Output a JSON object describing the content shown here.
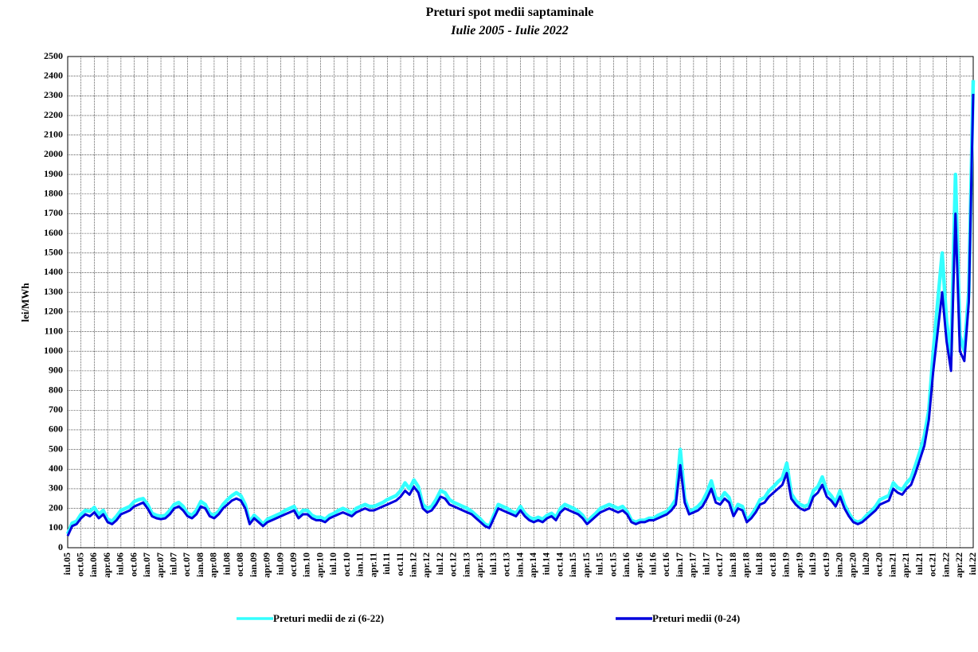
{
  "chart_data": {
    "type": "line",
    "title": "Preturi spot medii saptaminale",
    "subtitle": "Iulie 2005 - Iulie 2022",
    "y_label": "lei/MWh",
    "ylim": [
      0,
      2500
    ],
    "yticks": [
      0,
      100,
      200,
      300,
      400,
      500,
      600,
      700,
      800,
      900,
      1000,
      1100,
      1200,
      1300,
      1400,
      1500,
      1600,
      1700,
      1800,
      1900,
      2000,
      2100,
      2200,
      2300,
      2400,
      2500
    ],
    "grid": true,
    "legend": "bottom",
    "categories": [
      "iul.05",
      null,
      null,
      "oct.05",
      null,
      null,
      "ian.06",
      null,
      null,
      "apr.06",
      null,
      null,
      "iul.06",
      null,
      null,
      "oct.06",
      null,
      null,
      "ian.07",
      null,
      null,
      "apr.07",
      null,
      null,
      "iul.07",
      null,
      null,
      "oct.07",
      null,
      null,
      "ian.08",
      null,
      null,
      "apr.08",
      null,
      null,
      "iul.08",
      null,
      null,
      "oct.08",
      null,
      null,
      "ian.09",
      null,
      null,
      "apr.09",
      null,
      null,
      "iul.09",
      null,
      null,
      "oct.09",
      null,
      null,
      "ian.10",
      null,
      null,
      "apr.10",
      null,
      null,
      "iul.10",
      null,
      null,
      "oct.10",
      null,
      null,
      "ian.11",
      null,
      null,
      "apr.11",
      null,
      null,
      "iul.11",
      null,
      null,
      "oct.11",
      null,
      null,
      "ian.12",
      null,
      null,
      "apr.12",
      null,
      null,
      "iul.12",
      null,
      null,
      "oct.12",
      null,
      null,
      "ian.13",
      null,
      null,
      "apr.13",
      null,
      null,
      "iul.13",
      null,
      null,
      "oct.13",
      null,
      null,
      "ian.14",
      null,
      null,
      "apr.14",
      null,
      null,
      "iul.14",
      null,
      null,
      "oct.14",
      null,
      null,
      "ian.15",
      null,
      null,
      "apr.15",
      null,
      null,
      "iul.15",
      null,
      null,
      "oct.15",
      null,
      null,
      "ian.16",
      null,
      null,
      "apr.16",
      null,
      null,
      "iul.16",
      null,
      null,
      "oct.16",
      null,
      null,
      "ian.17",
      null,
      null,
      "apr.17",
      null,
      null,
      "iul.17",
      null,
      null,
      "oct.17",
      null,
      null,
      "ian.18",
      null,
      null,
      "apr.18",
      null,
      null,
      "iul.18",
      null,
      null,
      "oct.18",
      null,
      null,
      "ian.19",
      null,
      null,
      "apr.19",
      null,
      null,
      "iul.19",
      null,
      null,
      "oct.19",
      null,
      null,
      "ian.20",
      null,
      null,
      "apr.20",
      null,
      null,
      "iul.20",
      null,
      null,
      "oct.20",
      null,
      null,
      "ian.21",
      null,
      null,
      "apr.21",
      null,
      null,
      "iul.21",
      null,
      null,
      "oct.21",
      null,
      null,
      "ian.22",
      null,
      null,
      "apr.22",
      null,
      null,
      "iul.22"
    ],
    "series": [
      {
        "name": "Preturi medii de zi (6-22)",
        "color": "#33ffff",
        "values": [
          70,
          125,
          135,
          170,
          190,
          185,
          205,
          170,
          190,
          145,
          135,
          160,
          190,
          200,
          210,
          235,
          245,
          250,
          220,
          175,
          165,
          160,
          165,
          190,
          220,
          230,
          210,
          175,
          165,
          190,
          235,
          220,
          175,
          165,
          185,
          220,
          245,
          265,
          280,
          265,
          220,
          130,
          165,
          145,
          120,
          145,
          155,
          165,
          175,
          190,
          200,
          210,
          165,
          190,
          190,
          165,
          155,
          155,
          145,
          165,
          175,
          190,
          200,
          190,
          175,
          200,
          210,
          220,
          210,
          210,
          220,
          230,
          245,
          255,
          265,
          290,
          330,
          300,
          345,
          310,
          220,
          200,
          210,
          245,
          290,
          280,
          245,
          230,
          220,
          210,
          200,
          185,
          165,
          145,
          120,
          110,
          165,
          220,
          210,
          200,
          185,
          175,
          210,
          175,
          155,
          145,
          155,
          145,
          165,
          175,
          155,
          200,
          220,
          210,
          200,
          185,
          165,
          130,
          155,
          175,
          200,
          210,
          220,
          210,
          200,
          210,
          185,
          140,
          130,
          140,
          140,
          150,
          150,
          165,
          175,
          185,
          210,
          245,
          500,
          250,
          185,
          195,
          210,
          235,
          280,
          340,
          255,
          245,
          280,
          255,
          175,
          220,
          210,
          140,
          165,
          200,
          245,
          255,
          290,
          310,
          335,
          355,
          430,
          275,
          240,
          220,
          210,
          220,
          290,
          310,
          360,
          290,
          265,
          230,
          290,
          220,
          175,
          140,
          130,
          140,
          165,
          185,
          210,
          245,
          255,
          265,
          330,
          305,
          295,
          330,
          355,
          420,
          490,
          570,
          700,
          1000,
          1250,
          1500,
          1150,
          980,
          1900,
          1080,
          1000,
          1300,
          2380
        ]
      },
      {
        "name": "Preturi medii (0-24)",
        "color": "#0000dd",
        "values": [
          60,
          110,
          120,
          150,
          170,
          160,
          180,
          150,
          170,
          130,
          120,
          140,
          170,
          180,
          190,
          210,
          220,
          230,
          200,
          160,
          150,
          145,
          150,
          170,
          200,
          210,
          190,
          160,
          150,
          170,
          210,
          200,
          160,
          150,
          170,
          200,
          220,
          240,
          250,
          240,
          200,
          120,
          150,
          130,
          110,
          130,
          140,
          150,
          160,
          170,
          180,
          190,
          150,
          170,
          170,
          150,
          140,
          140,
          130,
          150,
          160,
          170,
          180,
          170,
          160,
          180,
          190,
          200,
          190,
          190,
          200,
          210,
          220,
          230,
          240,
          260,
          290,
          270,
          310,
          280,
          200,
          180,
          190,
          220,
          260,
          250,
          220,
          210,
          200,
          190,
          180,
          170,
          150,
          130,
          110,
          100,
          150,
          200,
          190,
          180,
          170,
          160,
          190,
          160,
          140,
          130,
          140,
          130,
          150,
          160,
          140,
          180,
          200,
          190,
          180,
          170,
          150,
          120,
          140,
          160,
          180,
          190,
          200,
          190,
          180,
          190,
          170,
          130,
          120,
          130,
          130,
          140,
          140,
          150,
          160,
          170,
          190,
          220,
          420,
          230,
          170,
          180,
          190,
          210,
          250,
          300,
          230,
          220,
          250,
          230,
          160,
          200,
          190,
          130,
          150,
          180,
          220,
          230,
          260,
          280,
          300,
          320,
          380,
          250,
          220,
          200,
          190,
          200,
          260,
          280,
          320,
          260,
          240,
          210,
          260,
          200,
          160,
          130,
          120,
          130,
          150,
          170,
          190,
          220,
          230,
          240,
          300,
          280,
          270,
          300,
          320,
          380,
          450,
          520,
          650,
          900,
          1100,
          1300,
          1050,
          900,
          1700,
          1000,
          950,
          1250,
          2310
        ]
      }
    ]
  }
}
